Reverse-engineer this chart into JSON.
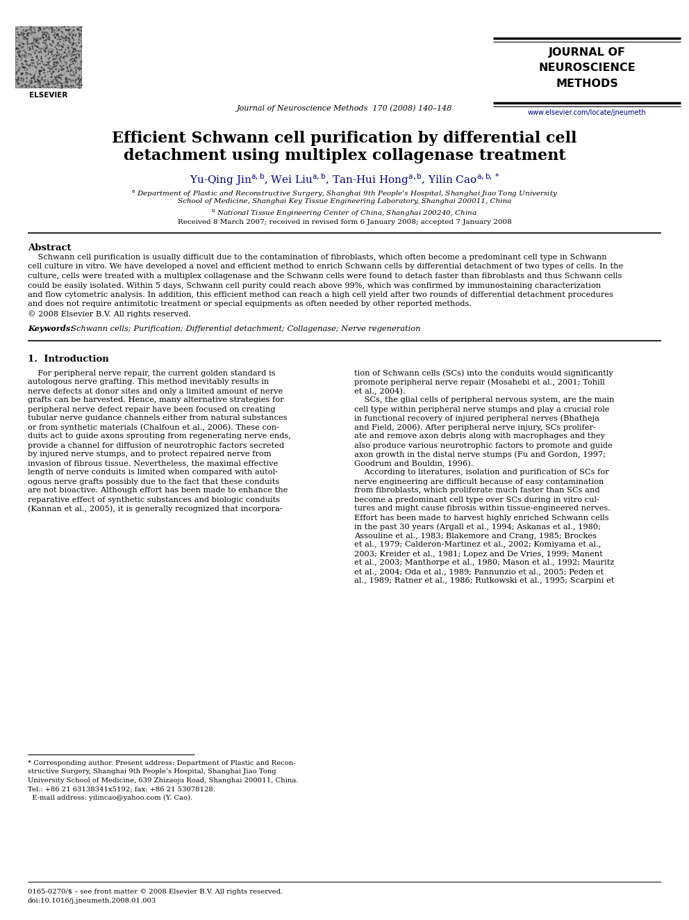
{
  "bg_color": "#ffffff",
  "header": {
    "journal_name_line1": "JOURNAL OF",
    "journal_name_line2": "NEUROSCIENCE",
    "journal_name_line3": "METHODS",
    "journal_info": "Journal of Neuroscience Methods  170 (2008) 140–148",
    "website": "www.elsevier.com/locate/jneumeth",
    "elsevier_text": "ELSEVIER"
  },
  "title_line1": "Efficient Schwann cell purification by differential cell",
  "title_line2": "detachment using multiplex collagenase treatment",
  "received": "Received 8 March 2007; received in revised form 6 January 2008; accepted 7 January 2008",
  "abstract_title": "Abstract",
  "keywords_label": "Keywords:",
  "keywords_text": "  Schwann cells; Purification; Differential detachment; Collagenase; Nerve regeneration",
  "section1_title": "1.  Introduction",
  "footer_text1": "0165-0270/$ – see front matter © 2008 Elsevier B.V. All rights reserved.",
  "footer_text2": "doi:10.1016/j.jneumeth.2008.01.003",
  "link_color": "#000080",
  "text_color": "#000000"
}
